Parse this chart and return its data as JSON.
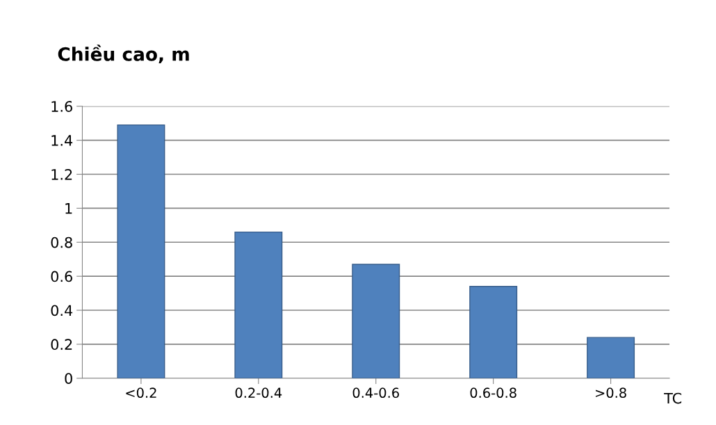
{
  "chart_data": {
    "type": "bar",
    "ylabel": "Chiều cao, m",
    "xlabel": "TC",
    "categories": [
      "<0.2",
      "0.2-0.4",
      "0.4-0.6",
      "0.6-0.8",
      ">0.8"
    ],
    "values": [
      1.49,
      0.86,
      0.67,
      0.54,
      0.24
    ],
    "color": "#4f81bd",
    "ylim": [
      0,
      1.6
    ],
    "yticks": [
      0,
      0.2,
      0.4,
      0.6,
      0.8,
      1,
      1.2,
      1.4,
      1.6
    ],
    "grid": "y"
  }
}
